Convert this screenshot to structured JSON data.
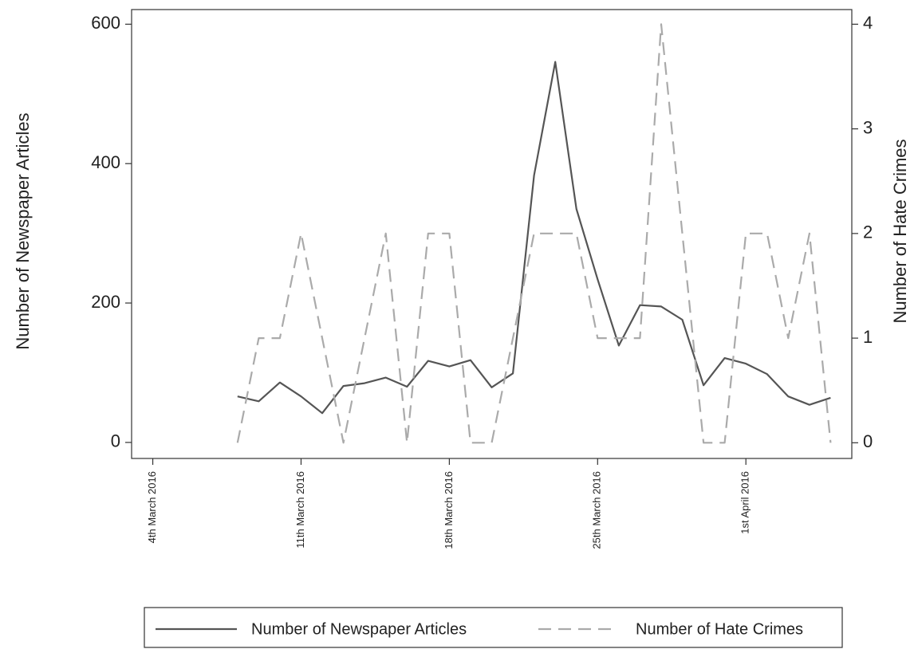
{
  "chart_data": {
    "type": "line",
    "y_label": "Number of Newspaper Articles",
    "y2_label": "Number of Hate Crimes",
    "x": [
      "2016-03-08",
      "2016-03-09",
      "2016-03-10",
      "2016-03-11",
      "2016-03-12",
      "2016-03-13",
      "2016-03-14",
      "2016-03-15",
      "2016-03-16",
      "2016-03-17",
      "2016-03-18",
      "2016-03-19",
      "2016-03-20",
      "2016-03-21",
      "2016-03-22",
      "2016-03-23",
      "2016-03-24",
      "2016-03-25",
      "2016-03-26",
      "2016-03-27",
      "2016-03-28",
      "2016-03-29",
      "2016-03-30",
      "2016-03-31",
      "2016-04-01",
      "2016-04-02",
      "2016-04-03",
      "2016-04-04",
      "2016-04-05"
    ],
    "series": [
      {
        "name": "Number of Newspaper Articles",
        "color": "#555555",
        "dash": "solid",
        "values": [
          66,
          59,
          86,
          66,
          42,
          81,
          85,
          93,
          80,
          117,
          109,
          118,
          79,
          99,
          383,
          546,
          335,
          234,
          139,
          197,
          195,
          176,
          82,
          121,
          113,
          98,
          66,
          54,
          64
        ]
      },
      {
        "name": "Number of Hate Crimes",
        "color": "#aaaaaa",
        "dash": "dashed",
        "axis": "y2",
        "values": [
          0,
          1,
          1,
          2,
          1,
          0,
          1,
          2,
          0,
          2,
          2,
          0,
          0,
          1,
          2,
          2,
          2,
          1,
          1,
          1,
          4,
          2,
          0,
          0,
          2,
          2,
          1,
          2,
          0
        ]
      }
    ],
    "xlim": [
      "2016-03-03",
      "2016-04-06"
    ],
    "xticks": [
      {
        "value": "2016-03-04",
        "label": "4th March 2016"
      },
      {
        "value": "2016-03-11",
        "label": "11th March 2016"
      },
      {
        "value": "2016-03-18",
        "label": "18th March 2016"
      },
      {
        "value": "2016-03-25",
        "label": "25th March 2016"
      },
      {
        "value": "2016-04-01",
        "label": "1st April 2016"
      }
    ],
    "ylim": [
      -23,
      621
    ],
    "yticks": [
      0,
      200,
      400,
      600
    ],
    "y2lim": [
      -0.15,
      4.14
    ],
    "y2ticks": [
      0,
      1,
      2,
      3,
      4
    ],
    "legend": "bottom"
  }
}
